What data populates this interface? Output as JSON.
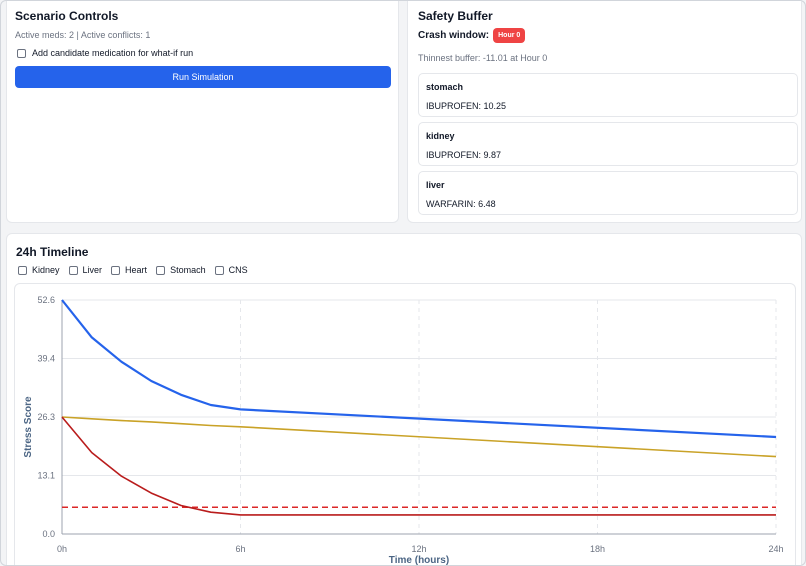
{
  "controls": {
    "title": "Scenario Controls",
    "status": "Active meds: 2 | Active conflicts: 1",
    "candidate_label": "Add candidate medication for what-if run",
    "run_label": "Run Simulation"
  },
  "buffer": {
    "title": "Safety Buffer",
    "crash_label": "Crash window:",
    "crash_badge": "Hour 0",
    "thinnest": "Thinnest buffer: -11.01 at Hour 0",
    "organs": [
      {
        "name": "stomach",
        "value": "IBUPROFEN: 10.25"
      },
      {
        "name": "kidney",
        "value": "IBUPROFEN: 9.87"
      },
      {
        "name": "liver",
        "value": "WARFARIN: 6.48"
      }
    ]
  },
  "timeline": {
    "title": "24h Timeline",
    "toggles": [
      "Kidney",
      "Liver",
      "Heart",
      "Stomach",
      "CNS"
    ]
  },
  "chart_data": {
    "type": "line",
    "xlabel": "Time (hours)",
    "ylabel": "Stress Score",
    "x_ticks": [
      "0h",
      "6h",
      "12h",
      "18h",
      "24h"
    ],
    "y_ticks": [
      "0.0",
      "13.1",
      "26.3",
      "39.4",
      "52.6"
    ],
    "xlim": [
      0,
      24
    ],
    "ylim": [
      0,
      52.6
    ],
    "grid": true,
    "x": [
      0,
      1,
      2,
      3,
      4,
      5,
      6,
      24
    ],
    "series": [
      {
        "color": "#2563eb",
        "values": [
          52.6,
          44.2,
          38.7,
          34.4,
          31.3,
          29.0,
          28.0,
          21.8
        ]
      },
      {
        "color": "#c9a227",
        "values": [
          26.3,
          25.9,
          25.5,
          25.2,
          24.8,
          24.4,
          24.1,
          17.4
        ]
      },
      {
        "color": "#b91c1c",
        "values": [
          26.3,
          18.3,
          13.0,
          9.2,
          6.4,
          4.9,
          4.3,
          4.3
        ]
      }
    ],
    "threshold": {
      "value": 6.0,
      "color": "#dc2626"
    }
  }
}
